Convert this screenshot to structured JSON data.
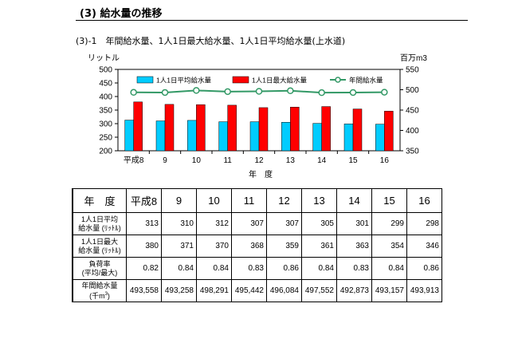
{
  "section": {
    "heading": "(3) 給水量の推移",
    "subheading": "(3)-1　年間給水量、1人1日最大給水量、1人1日平均給水量(上水道)"
  },
  "chart_data": {
    "type": "bar",
    "categories": [
      "平成8",
      "9",
      "10",
      "11",
      "12",
      "13",
      "14",
      "15",
      "16"
    ],
    "xlabel": "年　度",
    "ylabel_left": "リットル",
    "ylabel_right": "百万m3",
    "ylim_left": [
      200,
      500
    ],
    "yticks_left": [
      "200",
      "250",
      "300",
      "350",
      "400",
      "450",
      "500"
    ],
    "ylim_right": [
      350,
      550
    ],
    "yticks_right": [
      "350",
      "400",
      "450",
      "500",
      "550"
    ],
    "legend_position": "top",
    "series": [
      {
        "name": "1人1日平均給水量",
        "kind": "bar",
        "axis": "left",
        "color": "#00ccff",
        "values": [
          313,
          310,
          312,
          307,
          307,
          305,
          301,
          299,
          298
        ]
      },
      {
        "name": "1人1日最大給水量",
        "kind": "bar",
        "axis": "left",
        "color": "#ff0000",
        "values": [
          380,
          371,
          370,
          368,
          359,
          361,
          363,
          354,
          346
        ]
      },
      {
        "name": "年間給水量",
        "kind": "line",
        "axis": "right",
        "color": "#339966",
        "values": [
          493.558,
          493.258,
          498.291,
          495.442,
          496.084,
          497.552,
          492.873,
          493.157,
          493.913
        ]
      }
    ]
  },
  "table": {
    "header_label": "年　度",
    "years": [
      "平成8",
      "9",
      "10",
      "11",
      "12",
      "13",
      "14",
      "15",
      "16"
    ],
    "rows": [
      {
        "label_lines": [
          "1人1日平均",
          "給水量 (ﾘｯﾄﾙ)"
        ],
        "values": [
          "313",
          "310",
          "312",
          "307",
          "307",
          "305",
          "301",
          "299",
          "298"
        ]
      },
      {
        "label_lines": [
          "1人1日最大",
          "給水量 (ﾘｯﾄﾙ)"
        ],
        "values": [
          "380",
          "371",
          "370",
          "368",
          "359",
          "361",
          "363",
          "354",
          "346"
        ]
      },
      {
        "label_lines": [
          "負荷率",
          "(平均/最大)"
        ],
        "values": [
          "0.82",
          "0.84",
          "0.84",
          "0.83",
          "0.86",
          "0.84",
          "0.83",
          "0.84",
          "0.86"
        ]
      },
      {
        "label_lines": [
          "年間給水量",
          "(千m"
        ],
        "label_sup": "3",
        "label_tail": ")",
        "values": [
          "493,558",
          "493,258",
          "498,291",
          "495,442",
          "496,084",
          "497,552",
          "492,873",
          "493,157",
          "493,913"
        ]
      }
    ]
  }
}
